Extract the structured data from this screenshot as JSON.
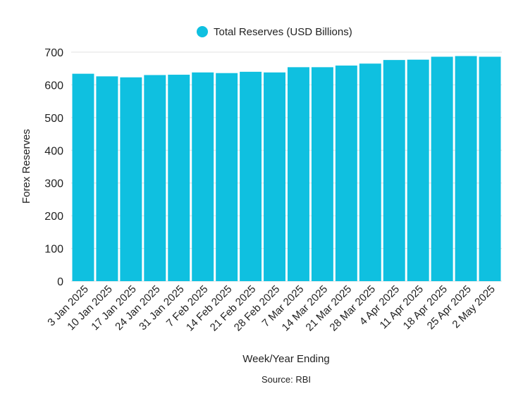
{
  "chart_data": {
    "type": "bar",
    "categories": [
      "3 Jan 2025",
      "10 Jan 2025",
      "17 Jan 2025",
      "24 Jan 2025",
      "31 Jan 2025",
      "7 Feb 2025",
      "14 Feb 2025",
      "21 Feb 2025",
      "28 Feb 2025",
      "7 Mar 2025",
      "14 Mar 2025",
      "21 Mar 2025",
      "28 Mar 2025",
      "4 Apr 2025",
      "11 Apr 2025",
      "18 Apr 2025",
      "25 Apr 2025",
      "2 May 2025"
    ],
    "series": [
      {
        "name": "Total Reserves (USD Billions)",
        "values": [
          634,
          626,
          623,
          630,
          631,
          638,
          636,
          640,
          638,
          654,
          654,
          659,
          665,
          676,
          677,
          686,
          688,
          686
        ],
        "color": "#0fc0e0"
      }
    ],
    "xlabel": "Week/Year Ending",
    "ylabel": "Forex Reserves",
    "ylim": [
      0,
      700
    ],
    "yticks": [
      0,
      100,
      200,
      300,
      400,
      500,
      600,
      700
    ],
    "grid": true,
    "legend_placement": "top-center",
    "source_note": "Source: RBI"
  }
}
